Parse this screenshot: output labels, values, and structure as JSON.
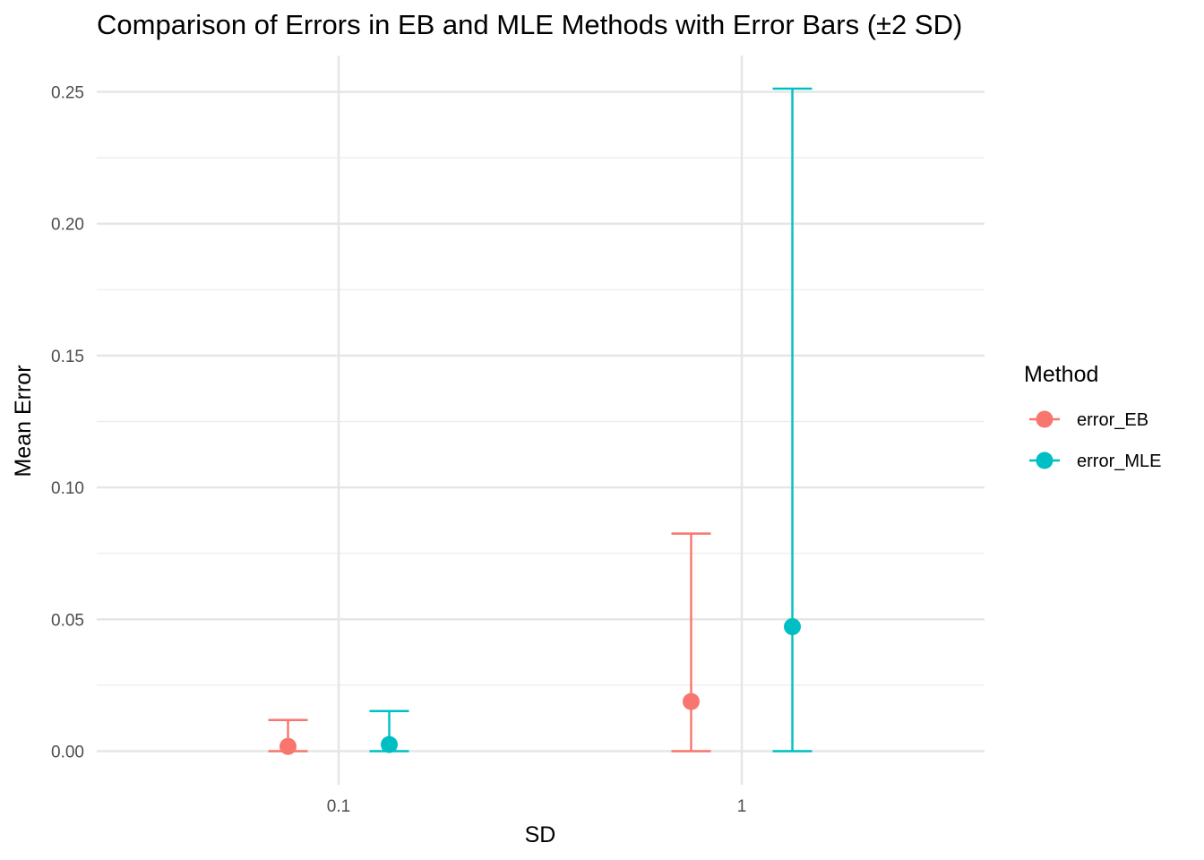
{
  "chart_data": {
    "type": "scatter",
    "title": "Comparison of Errors in EB and MLE Methods with Error Bars (±2 SD)",
    "xlabel": "SD",
    "ylabel": "Mean Error",
    "x_scale": "log10",
    "x_categories": [
      0.1,
      1
    ],
    "x_tick_labels": [
      "0.1",
      "1"
    ],
    "ylim": [
      0,
      0.25
    ],
    "y_ticks": [
      0,
      0.05,
      0.1,
      0.15,
      0.2,
      0.25
    ],
    "y_tick_labels": [
      "0.00",
      "0.05",
      "0.10",
      "0.15",
      "0.20",
      "0.25"
    ],
    "grid": true,
    "legend": {
      "title": "Method",
      "position": "right"
    },
    "series": [
      {
        "name": "error_EB",
        "color": "#F8766D",
        "points": [
          {
            "x": 0.1,
            "y": 0.0018,
            "ymin": 0.0,
            "ymax": 0.0118
          },
          {
            "x": 1,
            "y": 0.0188,
            "ymin": 0.0,
            "ymax": 0.0825
          }
        ]
      },
      {
        "name": "error_MLE",
        "color": "#00BFC4",
        "points": [
          {
            "x": 0.1,
            "y": 0.0025,
            "ymin": 0.0,
            "ymax": 0.0152
          },
          {
            "x": 1,
            "y": 0.0472,
            "ymin": 0.0,
            "ymax": 0.2512
          }
        ]
      }
    ]
  }
}
